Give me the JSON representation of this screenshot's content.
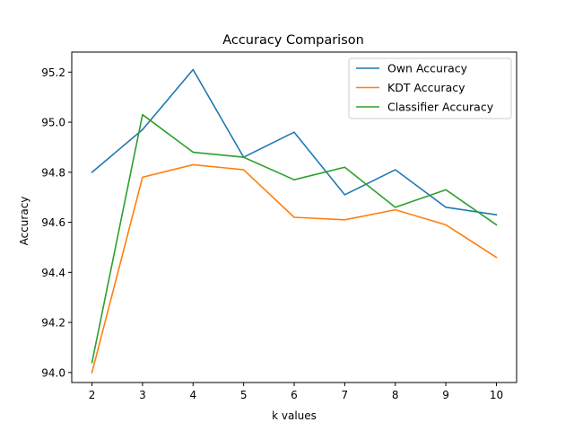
{
  "chart_data": {
    "type": "line",
    "title": "Accuracy Comparison",
    "xlabel": "k values",
    "ylabel": "Accuracy",
    "x": [
      2,
      3,
      4,
      5,
      6,
      7,
      8,
      9,
      10
    ],
    "xlim": [
      1.6,
      10.4
    ],
    "ylim": [
      93.96,
      95.28
    ],
    "xticks": [
      2,
      3,
      4,
      5,
      6,
      7,
      8,
      9,
      10
    ],
    "yticks": [
      94.0,
      94.2,
      94.4,
      94.6,
      94.8,
      95.0,
      95.2
    ],
    "xtick_labels": [
      "2",
      "3",
      "4",
      "5",
      "6",
      "7",
      "8",
      "9",
      "10"
    ],
    "ytick_labels": [
      "94.0",
      "94.2",
      "94.4",
      "94.6",
      "94.8",
      "95.0",
      "95.2"
    ],
    "grid": false,
    "legend_position": "top-right",
    "series": [
      {
        "name": "Own Accuracy",
        "color": "#1f77b4",
        "values": [
          94.8,
          94.97,
          95.21,
          94.86,
          94.96,
          94.71,
          94.81,
          94.66,
          94.63
        ]
      },
      {
        "name": "KDT Accuracy",
        "color": "#ff7f0e",
        "values": [
          94.0,
          94.78,
          94.83,
          94.81,
          94.62,
          94.61,
          94.65,
          94.59,
          94.46
        ]
      },
      {
        "name": "Classifier Accuracy",
        "color": "#2ca02c",
        "values": [
          94.04,
          95.03,
          94.88,
          94.86,
          94.77,
          94.82,
          94.66,
          94.73,
          94.59
        ]
      }
    ]
  }
}
